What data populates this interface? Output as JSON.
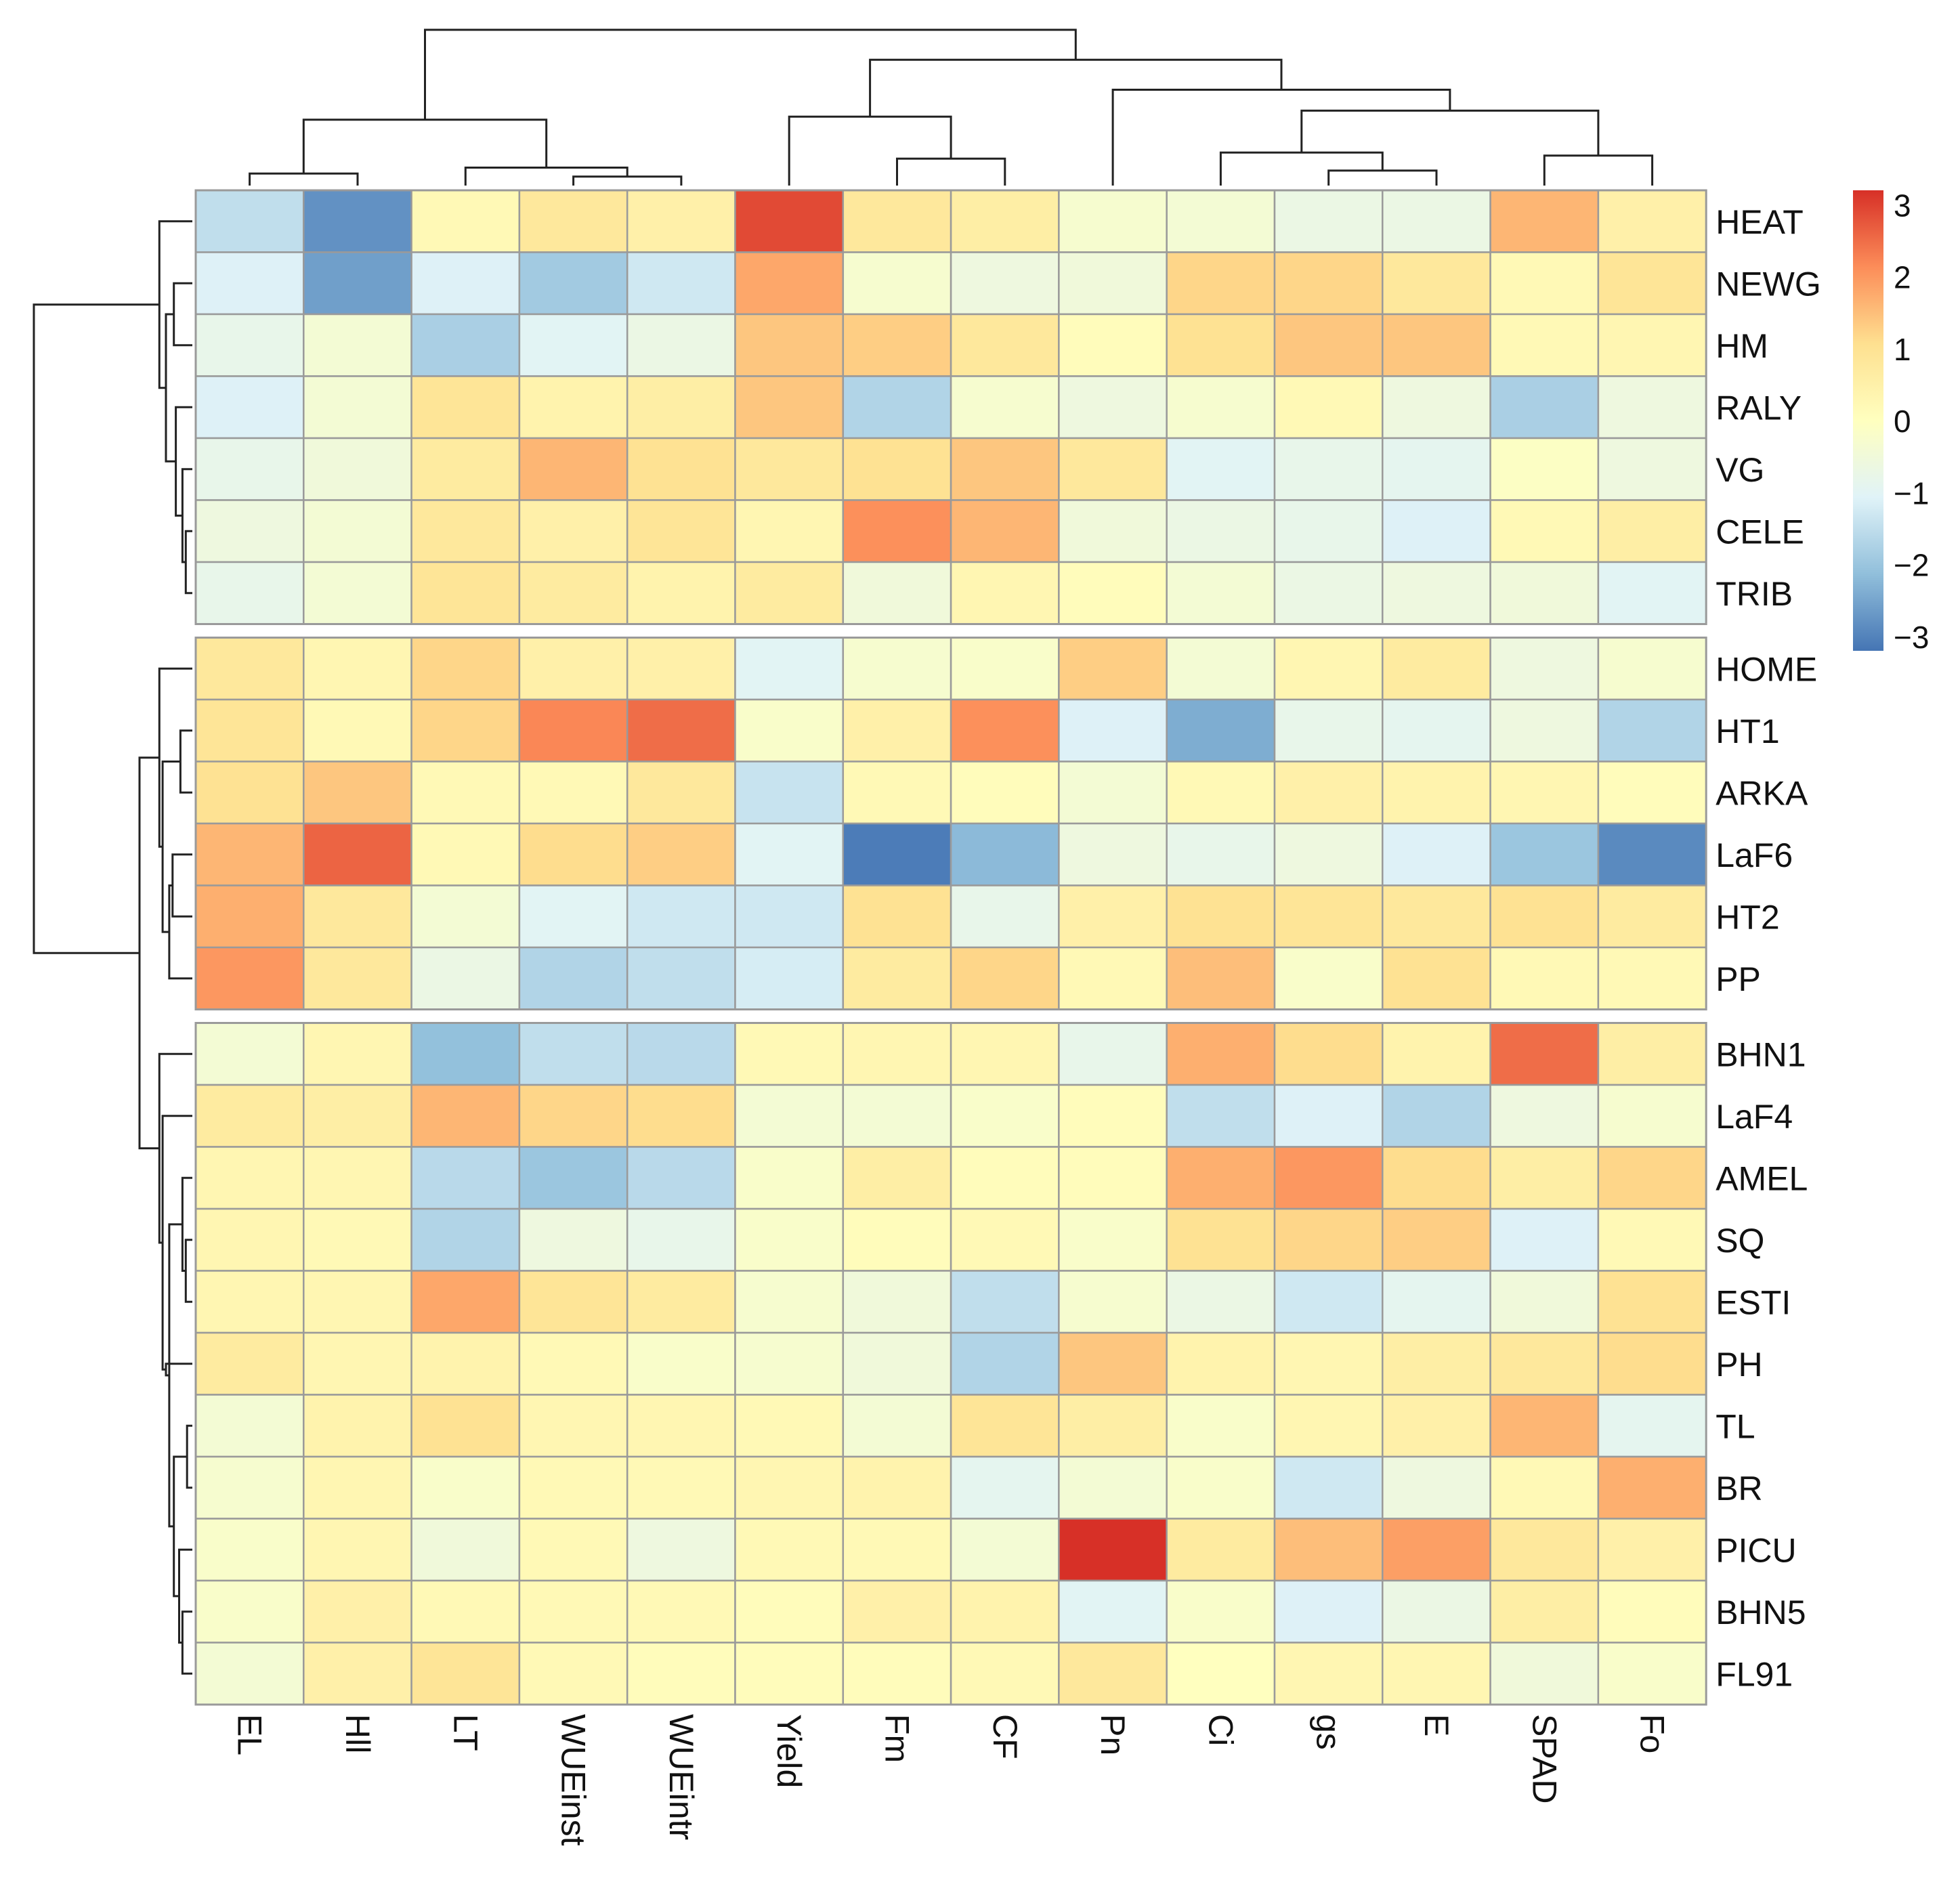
{
  "chart_data": {
    "type": "heatmap",
    "title": "",
    "xlabel": "",
    "ylabel": "",
    "columns": [
      "EL",
      "Hll",
      "LT",
      "WUEinst",
      "WUEintr",
      "Yield",
      "Fm",
      "CF",
      "Pn",
      "Ci",
      "gs",
      "E",
      "SPAD",
      "Fo"
    ],
    "rows": [
      "HEAT",
      "NEWG",
      "HM",
      "RALY",
      "VG",
      "CELE",
      "TRIB",
      "HOME",
      "HT1",
      "ARKA",
      "LaF6",
      "HT2",
      "PP",
      "BHN1",
      "LaF4",
      "AMEL",
      "SQ",
      "ESTI",
      "PH",
      "TL",
      "BR",
      "PICU",
      "BHN5",
      "FL91"
    ],
    "row_groups": [
      7,
      6,
      11
    ],
    "values": [
      [
        -1.5,
        -2.8,
        0.2,
        0.8,
        0.5,
        2.9,
        0.8,
        0.6,
        -0.3,
        -0.4,
        -0.7,
        -0.7,
        1.6,
        0.5
      ],
      [
        -1.1,
        -2.6,
        -1.1,
        -1.9,
        -1.3,
        1.8,
        -0.3,
        -0.6,
        -0.5,
        1.2,
        1.2,
        0.8,
        0.2,
        0.9
      ],
      [
        -0.8,
        -0.4,
        -1.8,
        -1.0,
        -0.7,
        1.4,
        1.3,
        0.8,
        0.1,
        1.0,
        1.4,
        1.4,
        0.2,
        0.3
      ],
      [
        -1.1,
        -0.4,
        0.9,
        0.4,
        0.6,
        1.4,
        -1.7,
        -0.3,
        -0.6,
        -0.3,
        0.2,
        -0.6,
        -1.8,
        -0.6
      ],
      [
        -0.8,
        -0.5,
        0.7,
        1.6,
        1.0,
        0.8,
        1.0,
        1.4,
        0.8,
        -1.0,
        -0.8,
        -0.9,
        -0.1,
        -0.6
      ],
      [
        -0.6,
        -0.4,
        0.8,
        0.5,
        0.9,
        0.3,
        2.1,
        1.6,
        -0.5,
        -0.7,
        -0.8,
        -1.1,
        0.2,
        0.6
      ],
      [
        -0.8,
        -0.4,
        0.9,
        0.7,
        0.4,
        0.7,
        -0.5,
        0.3,
        0.1,
        -0.4,
        -0.7,
        -0.6,
        -0.5,
        -1.0
      ],
      [
        0.8,
        0.3,
        1.2,
        0.5,
        0.5,
        -1.0,
        -0.3,
        -0.2,
        1.3,
        -0.4,
        0.3,
        0.7,
        -0.6,
        -0.3
      ],
      [
        0.9,
        0.2,
        1.2,
        2.2,
        2.5,
        -0.2,
        0.5,
        2.1,
        -1.1,
        -2.4,
        -0.8,
        -0.9,
        -0.6,
        -1.7
      ],
      [
        1.0,
        1.4,
        0.2,
        0.2,
        0.8,
        -1.4,
        0.2,
        0.1,
        -0.4,
        0.2,
        0.5,
        0.4,
        0.3,
        0.1
      ],
      [
        1.6,
        2.6,
        0.2,
        1.1,
        1.3,
        -1.0,
        -3.1,
        -2.2,
        -0.6,
        -0.8,
        -0.6,
        -1.1,
        -2.0,
        -2.9
      ],
      [
        1.7,
        0.8,
        -0.4,
        -1.0,
        -1.3,
        -1.3,
        1.0,
        -0.8,
        0.5,
        1.0,
        0.9,
        0.8,
        1.0,
        0.7
      ],
      [
        2.0,
        0.8,
        -0.7,
        -1.7,
        -1.5,
        -1.2,
        0.7,
        1.2,
        0.2,
        1.5,
        -0.2,
        1.0,
        0.2,
        0.2
      ],
      [
        -0.4,
        0.3,
        -2.1,
        -1.5,
        -1.6,
        0.2,
        0.3,
        0.3,
        -0.8,
        1.7,
        1.1,
        0.4,
        2.5,
        0.6
      ],
      [
        0.7,
        0.6,
        1.6,
        1.2,
        1.1,
        -0.4,
        -0.4,
        -0.2,
        0.1,
        -1.5,
        -1.1,
        -1.7,
        -0.6,
        -0.3
      ],
      [
        0.3,
        0.3,
        -1.6,
        -2.0,
        -1.6,
        -0.2,
        0.6,
        0.1,
        0.1,
        1.7,
        2.0,
        1.1,
        0.6,
        1.2
      ],
      [
        0.3,
        0.2,
        -1.7,
        -0.6,
        -0.8,
        -0.2,
        0.1,
        0.2,
        -0.2,
        1.0,
        1.2,
        1.3,
        -1.1,
        0.2
      ],
      [
        0.3,
        0.3,
        1.8,
        0.9,
        0.7,
        -0.3,
        -0.5,
        -1.5,
        -0.3,
        -0.7,
        -1.3,
        -0.9,
        -0.5,
        1.0
      ],
      [
        0.7,
        0.3,
        0.4,
        0.2,
        -0.2,
        -0.3,
        -0.5,
        -1.7,
        1.4,
        0.4,
        0.3,
        0.6,
        0.8,
        1.1
      ],
      [
        -0.4,
        0.4,
        1.0,
        0.3,
        0.3,
        0.2,
        -0.4,
        0.9,
        0.6,
        -0.2,
        0.3,
        0.5,
        1.6,
        -0.9
      ],
      [
        -0.3,
        0.3,
        -0.2,
        0.2,
        0.2,
        0.3,
        0.4,
        -0.9,
        -0.4,
        -0.2,
        -1.3,
        -0.6,
        0.2,
        1.7
      ],
      [
        -0.2,
        0.3,
        -0.5,
        0.2,
        -0.6,
        0.2,
        0.2,
        -0.4,
        3.2,
        0.7,
        1.5,
        1.9,
        0.8,
        0.5
      ],
      [
        -0.2,
        0.5,
        0.2,
        0.2,
        0.2,
        0.1,
        0.5,
        0.4,
        -1.0,
        -0.2,
        -1.1,
        -0.7,
        0.6,
        0.1
      ],
      [
        -0.4,
        0.5,
        0.9,
        0.2,
        0.1,
        0.1,
        0.1,
        0.2,
        0.8,
        0.0,
        0.3,
        0.3,
        -0.5,
        -0.2
      ]
    ],
    "legend": {
      "ticks": [
        3,
        2,
        1,
        0,
        -1,
        -2,
        -3
      ],
      "range": [
        -3.2,
        3.2
      ],
      "colors": [
        "#4575b4",
        "#91bfdb",
        "#e0f3f8",
        "#ffffbf",
        "#fee090",
        "#fc8d59",
        "#d73027"
      ]
    },
    "col_dendrogram": {
      "merges": [
        [
          -4,
          -5,
          0.15
        ],
        [
          -1,
          -2,
          0.2
        ],
        [
          -11,
          -12,
          0.25
        ],
        [
          -3,
          1,
          0.3
        ],
        [
          -7,
          -8,
          0.45
        ],
        [
          -13,
          -14,
          0.5
        ],
        [
          -10,
          3,
          0.55
        ],
        [
          2,
          4,
          1.1
        ],
        [
          -6,
          5,
          1.15
        ],
        [
          7,
          6,
          1.25
        ],
        [
          -9,
          10,
          1.6
        ],
        [
          9,
          11,
          2.1
        ],
        [
          8,
          12,
          2.6
        ]
      ]
    },
    "row_dendrogram": {
      "merges": [
        [
          -6,
          -7,
          0.1
        ],
        [
          -5,
          1,
          0.15
        ],
        [
          -4,
          2,
          0.25
        ],
        [
          -2,
          -3,
          0.28
        ],
        [
          4,
          3,
          0.4
        ],
        [
          -1,
          5,
          0.5
        ],
        [
          -9,
          -10,
          0.18
        ],
        [
          -11,
          -12,
          0.3
        ],
        [
          -13,
          8,
          0.35
        ],
        [
          7,
          9,
          0.45
        ],
        [
          -8,
          10,
          0.5
        ],
        [
          -20,
          -21,
          0.08
        ],
        [
          -17,
          -18,
          0.1
        ],
        [
          -16,
          13,
          0.15
        ],
        [
          -23,
          -24,
          0.15
        ],
        [
          -22,
          15,
          0.2
        ],
        [
          12,
          16,
          0.28
        ],
        [
          14,
          17,
          0.35
        ],
        [
          -19,
          18,
          0.4
        ],
        [
          -15,
          19,
          0.45
        ],
        [
          -14,
          20,
          0.5
        ],
        [
          11,
          21,
          0.8
        ],
        [
          6,
          22,
          2.4
        ]
      ]
    }
  }
}
